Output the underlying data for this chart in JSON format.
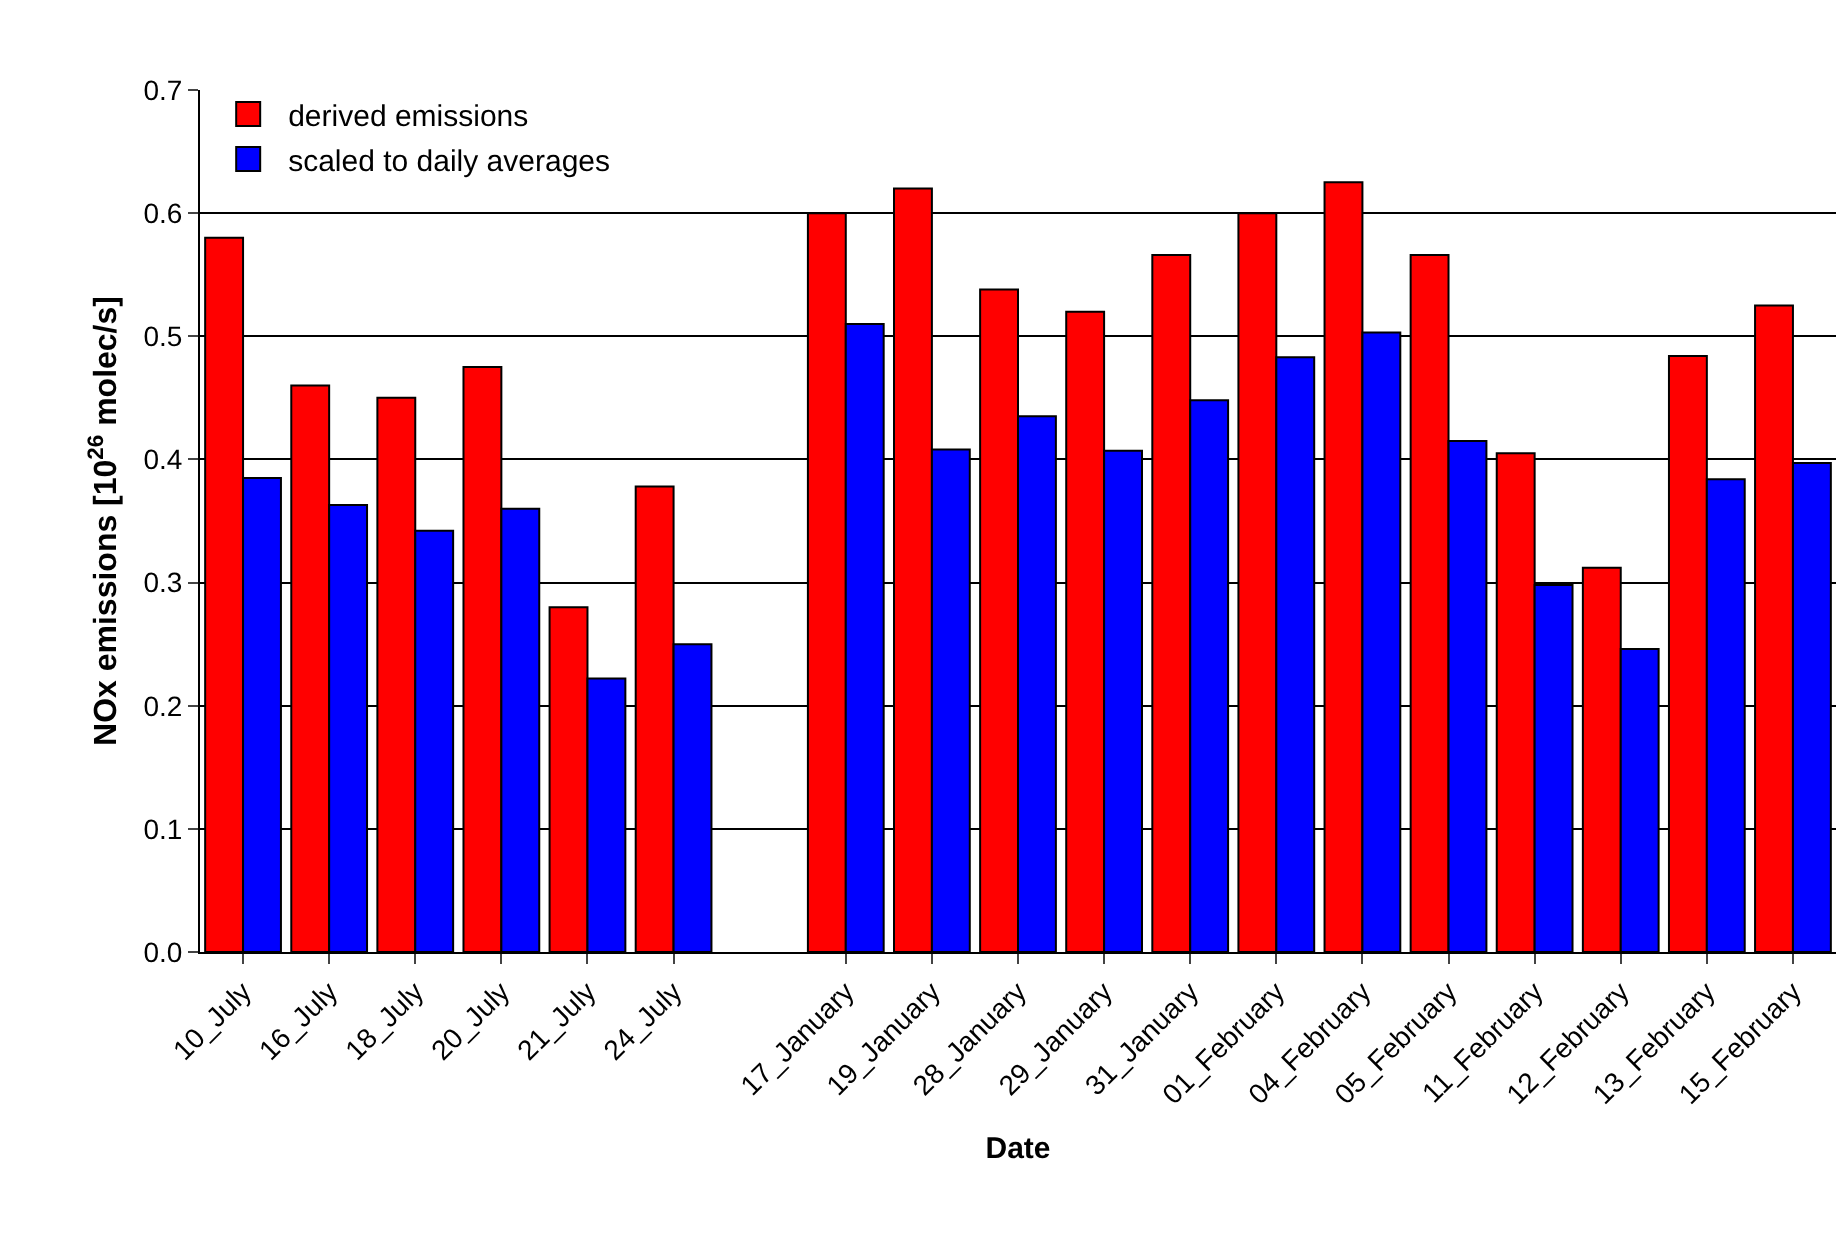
{
  "chart_data": {
    "type": "bar",
    "xlabel": "Date",
    "ylabel": "NOx emissions [10$^{26}$ molec/s]",
    "categories": [
      "10_July",
      "16_July",
      "18_July",
      "20_July",
      "21_July",
      "24_July",
      null,
      "17_January",
      "19_January",
      "28_January",
      "29_January",
      "31_January",
      "01_February",
      "04_February",
      "05_February",
      "11_February",
      "12_February",
      "13_February",
      "15_February"
    ],
    "series": [
      {
        "name": "derived emissions",
        "color": "#ff0000",
        "values": [
          0.58,
          0.46,
          0.45,
          0.475,
          0.28,
          0.378,
          null,
          0.6,
          0.62,
          0.538,
          0.52,
          0.566,
          0.6,
          0.625,
          0.566,
          0.405,
          0.312,
          0.484,
          0.525
        ]
      },
      {
        "name": "scaled to daily averages",
        "color": "#0000ff",
        "values": [
          0.385,
          0.363,
          0.342,
          0.36,
          0.222,
          0.25,
          null,
          0.51,
          0.408,
          0.435,
          0.407,
          0.448,
          0.483,
          0.503,
          0.415,
          0.298,
          0.246,
          0.384,
          0.397
        ]
      }
    ],
    "ylim": [
      0,
      0.7
    ],
    "yticks": [
      {
        "value": 0,
        "label": "0.0"
      },
      0.1,
      0.2,
      0.3,
      0.4,
      0.5,
      0.6,
      0.7
    ],
    "grid": "y",
    "legend": "top left"
  }
}
